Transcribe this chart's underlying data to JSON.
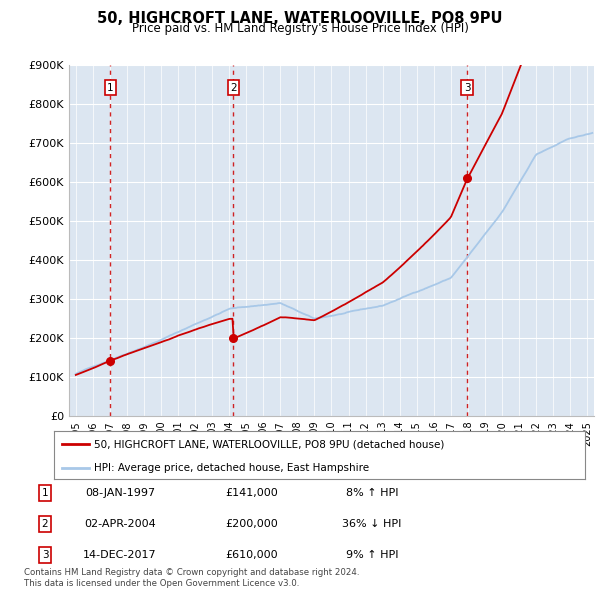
{
  "title_line1": "50, HIGHCROFT LANE, WATERLOOVILLE, PO8 9PU",
  "title_line2": "Price paid vs. HM Land Registry's House Price Index (HPI)",
  "background_color": "#ffffff",
  "plot_bg_color": "#dce6f1",
  "grid_color": "#ffffff",
  "sale_color": "#cc0000",
  "hpi_color": "#a8c8e8",
  "dashed_line_color": "#cc0000",
  "ytick_labels": [
    "£0",
    "£100K",
    "£200K",
    "£300K",
    "£400K",
    "£500K",
    "£600K",
    "£700K",
    "£800K",
    "£900K"
  ],
  "ytick_values": [
    0,
    100000,
    200000,
    300000,
    400000,
    500000,
    600000,
    700000,
    800000,
    900000
  ],
  "xmin": 1994.6,
  "xmax": 2025.4,
  "ymin": 0,
  "ymax": 900000,
  "sale_dates": [
    1997.03,
    2004.25,
    2017.96
  ],
  "sale_prices": [
    141000,
    200000,
    610000
  ],
  "sale_labels": [
    "1",
    "2",
    "3"
  ],
  "transactions": [
    {
      "label": "1",
      "date": "08-JAN-1997",
      "price": "£141,000",
      "hpi": "8% ↑ HPI"
    },
    {
      "label": "2",
      "date": "02-APR-2004",
      "price": "£200,000",
      "hpi": "36% ↓ HPI"
    },
    {
      "label": "3",
      "date": "14-DEC-2017",
      "price": "£610,000",
      "hpi": "9% ↑ HPI"
    }
  ],
  "legend_line1": "50, HIGHCROFT LANE, WATERLOOVILLE, PO8 9PU (detached house)",
  "legend_line2": "HPI: Average price, detached house, East Hampshire",
  "footnote": "Contains HM Land Registry data © Crown copyright and database right 2024.\nThis data is licensed under the Open Government Licence v3.0."
}
